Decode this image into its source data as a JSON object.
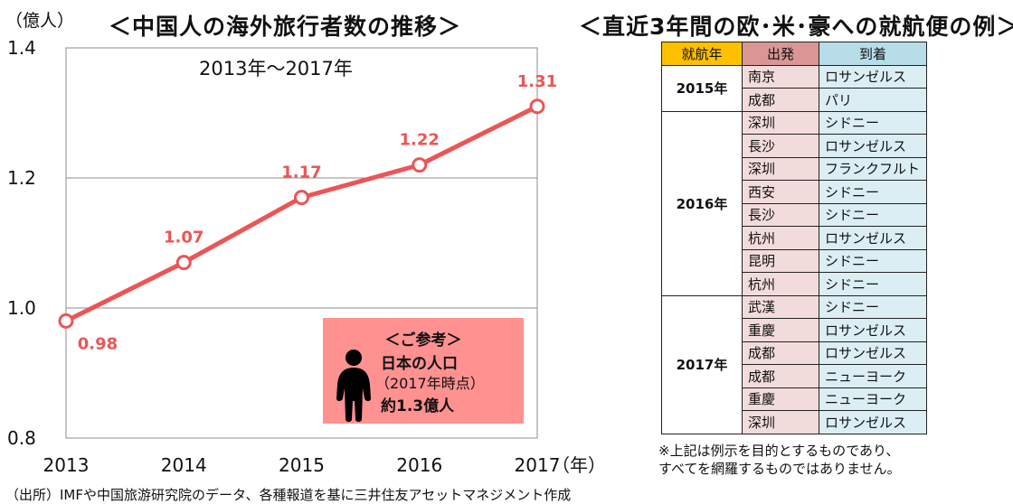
{
  "titles": {
    "chart": "＜中国人の海外旅行者数の推移＞",
    "table": "＜直近3年間の欧･米･豪への就航便の例＞"
  },
  "chart_data": {
    "type": "line",
    "title": "＜中国人の海外旅行者数の推移＞",
    "subtitle": "2013年～2017年",
    "y_unit_label": "（億人）",
    "x_unit_label": "（年）",
    "xlabel": "",
    "ylabel": "",
    "x": [
      "2013",
      "2014",
      "2015",
      "2016",
      "2017"
    ],
    "series": [
      {
        "values": [
          0.98,
          1.07,
          1.17,
          1.22,
          1.31
        ],
        "data_labels": [
          "0.98",
          "1.07",
          "1.17",
          "1.22",
          "1.31"
        ]
      }
    ],
    "ylim": [
      0.8,
      1.4
    ],
    "yticks": [
      "0.8",
      "1.0",
      "1.2",
      "1.4"
    ],
    "grid": true,
    "series_color": "#ec5555",
    "label_color": "#ec5555"
  },
  "reference": {
    "heading": "＜ご参考＞",
    "line1": "日本の人口",
    "line2": "（2017年時点）",
    "line3": "約1.3億人",
    "box_color": "#ff9191",
    "icon": "person-icon"
  },
  "flights_table": {
    "headers": {
      "year": "就航年",
      "from": "出発",
      "to": "到着"
    },
    "groups": [
      {
        "year": "2015年",
        "rows": [
          {
            "from": "南京",
            "to": "ロサンゼルス"
          },
          {
            "from": "成都",
            "to": "パリ"
          }
        ]
      },
      {
        "year": "2016年",
        "rows": [
          {
            "from": "深圳",
            "to": "シドニー"
          },
          {
            "from": "長沙",
            "to": "ロサンゼルス"
          },
          {
            "from": "深圳",
            "to": "フランクフルト"
          },
          {
            "from": "西安",
            "to": "シドニー"
          },
          {
            "from": "長沙",
            "to": "シドニー"
          },
          {
            "from": "杭州",
            "to": "ロサンゼルス"
          },
          {
            "from": "昆明",
            "to": "シドニー"
          },
          {
            "from": "杭州",
            "to": "シドニー"
          }
        ]
      },
      {
        "year": "2017年",
        "rows": [
          {
            "from": "武漢",
            "to": "シドニー"
          },
          {
            "from": "重慶",
            "to": "ロサンゼルス"
          },
          {
            "from": "成都",
            "to": "ロサンゼルス"
          },
          {
            "from": "成都",
            "to": "ニューヨーク"
          },
          {
            "from": "重慶",
            "to": "ニューヨーク"
          },
          {
            "from": "深圳",
            "to": "ロサンゼルス"
          }
        ]
      }
    ],
    "note_line1": "※上記は例示を目的とするものであり、",
    "note_line2": "すべてを網羅するものではありません。"
  },
  "source": "（出所）IMFや中国旅游研究院のデータ、各種報道を基に三井住友アセットマネジメント作成"
}
